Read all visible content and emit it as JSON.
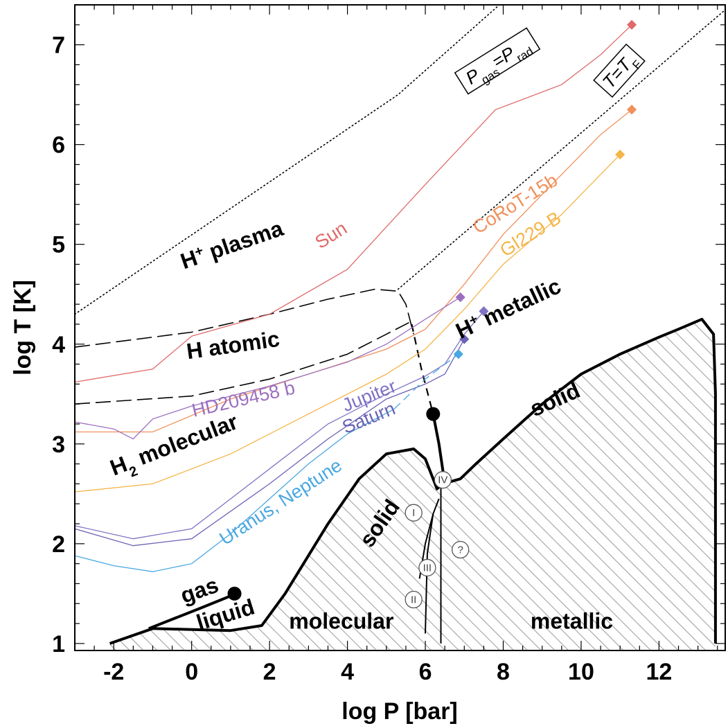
{
  "chart_data": {
    "type": "line",
    "xlabel": "log P [bar]",
    "ylabel": "log T [K]",
    "xlim": [
      -3,
      13.7
    ],
    "ylim": [
      0.93,
      7.4
    ],
    "x_ticks": [
      -2,
      0,
      2,
      4,
      6,
      8,
      10,
      12
    ],
    "y_ticks": [
      1,
      2,
      3,
      4,
      5,
      6,
      7
    ],
    "grid": false,
    "reference_lines": [
      {
        "id": "pgas-prad",
        "label": "P_gas = P_rad",
        "label_parts": {
          "main": "P",
          "sub1": "gas",
          "mid": "=P",
          "sub2": "rad"
        },
        "style": "dotted",
        "points": [
          [
            -3,
            4.3
          ],
          [
            5.3,
            6.5
          ],
          [
            7.9,
            7.4
          ]
        ]
      },
      {
        "id": "t-tf",
        "label": "T = T_F",
        "label_parts": {
          "main": "T=T",
          "sub1": "F"
        },
        "style": "dotted",
        "points": [
          [
            5.3,
            4.55
          ],
          [
            13.7,
            7.35
          ]
        ]
      }
    ],
    "boundaries": [
      {
        "id": "h-ionization",
        "style": "long-dash",
        "points": [
          [
            -3,
            3.97
          ],
          [
            0,
            4.12
          ],
          [
            2,
            4.3
          ],
          [
            3.5,
            4.45
          ],
          [
            4.7,
            4.55
          ],
          [
            5.3,
            4.53
          ],
          [
            5.5,
            4.4
          ],
          [
            5.7,
            4.1
          ]
        ]
      },
      {
        "id": "h2-dissociation",
        "style": "long-dash",
        "points": [
          [
            -3,
            3.4
          ],
          [
            0,
            3.48
          ],
          [
            2,
            3.65
          ],
          [
            4,
            3.9
          ],
          [
            5,
            4.1
          ],
          [
            5.6,
            4.22
          ]
        ]
      },
      {
        "id": "ppt-extension",
        "style": "dash",
        "points": [
          [
            5.65,
            4.2
          ],
          [
            5.9,
            3.75
          ],
          [
            6.2,
            3.3
          ]
        ]
      },
      {
        "id": "critical-line",
        "style": "solid-thick",
        "points": [
          [
            6.2,
            3.3
          ],
          [
            6.35,
            3.0
          ],
          [
            6.5,
            2.6
          ]
        ]
      },
      {
        "id": "molecular-solid",
        "style": "solid-thick",
        "points": [
          [
            -2.1,
            1.0
          ],
          [
            -1,
            1.15
          ],
          [
            1,
            1.13
          ],
          [
            1.8,
            1.18
          ],
          [
            2.4,
            1.5
          ],
          [
            3.5,
            2.2
          ],
          [
            4.3,
            2.65
          ],
          [
            5,
            2.9
          ],
          [
            5.7,
            2.95
          ],
          [
            6.0,
            2.85
          ],
          [
            6.3,
            2.55
          ],
          [
            6.45,
            2.6
          ],
          [
            6.9,
            2.65
          ],
          [
            7.3,
            2.8
          ],
          [
            8,
            3.05
          ],
          [
            9,
            3.4
          ],
          [
            10,
            3.7
          ],
          [
            11,
            3.9
          ],
          [
            12,
            4.07
          ],
          [
            12.5,
            4.15
          ],
          [
            13.1,
            4.25
          ],
          [
            13.4,
            4.1
          ],
          [
            13.45,
            3.5
          ],
          [
            13.45,
            1.0
          ]
        ]
      },
      {
        "id": "gas-liquid",
        "style": "solid-thick",
        "points": [
          [
            -1.1,
            1.15
          ],
          [
            0.2,
            1.35
          ],
          [
            1.15,
            1.5
          ]
        ]
      },
      {
        "id": "phase-i-ii",
        "style": "solid-thin",
        "points": [
          [
            5.85,
            1.65
          ],
          [
            6.0,
            2.0
          ],
          [
            6.2,
            2.3
          ],
          [
            6.35,
            2.45
          ]
        ]
      },
      {
        "id": "phase-ii-iii",
        "style": "solid-thin",
        "points": [
          [
            6.0,
            1.1
          ],
          [
            6.05,
            1.9
          ],
          [
            6.2,
            2.3
          ]
        ]
      },
      {
        "id": "phase-iv",
        "style": "solid-thin",
        "points": [
          [
            6.4,
            1.0
          ],
          [
            6.4,
            2.6
          ]
        ]
      }
    ],
    "critical_points": [
      [
        1.1,
        1.5
      ],
      [
        6.2,
        3.3
      ]
    ],
    "series": [
      {
        "name": "Sun",
        "color": "#e06a6a",
        "end_marker": [
          11.3,
          7.2
        ],
        "points": [
          [
            -3,
            3.62
          ],
          [
            -1,
            3.75
          ],
          [
            0,
            4.08
          ],
          [
            2,
            4.3
          ],
          [
            4,
            4.75
          ],
          [
            6,
            5.6
          ],
          [
            7.8,
            6.35
          ],
          [
            9.5,
            6.6
          ],
          [
            10.5,
            6.9
          ],
          [
            11.3,
            7.2
          ]
        ]
      },
      {
        "name": "CoRoT-15b",
        "color": "#f0905a",
        "end_marker": [
          11.3,
          6.35
        ],
        "points": [
          [
            -3,
            3.12
          ],
          [
            -1,
            3.12
          ],
          [
            1,
            3.45
          ],
          [
            3,
            3.7
          ],
          [
            5,
            3.95
          ],
          [
            6,
            4.15
          ],
          [
            7,
            4.6
          ],
          [
            8,
            5.1
          ],
          [
            9.5,
            5.7
          ],
          [
            10.5,
            6.1
          ],
          [
            11.3,
            6.35
          ]
        ]
      },
      {
        "name": "Gl229 B",
        "color": "#f5b548",
        "end_marker": [
          11.0,
          5.9
        ],
        "points": [
          [
            -3,
            2.52
          ],
          [
            -1,
            2.6
          ],
          [
            1,
            2.9
          ],
          [
            3,
            3.3
          ],
          [
            5,
            3.7
          ],
          [
            6,
            3.95
          ],
          [
            7,
            4.35
          ],
          [
            8,
            4.8
          ],
          [
            9.5,
            5.3
          ],
          [
            11,
            5.9
          ]
        ]
      },
      {
        "name": "HD209458 b",
        "color": "#9b6fbf",
        "end_marker": [
          6.9,
          4.47
        ],
        "points": [
          [
            -3,
            3.22
          ],
          [
            -2,
            3.15
          ],
          [
            -1.5,
            3.05
          ],
          [
            -1,
            3.25
          ],
          [
            0,
            3.38
          ],
          [
            2,
            3.58
          ],
          [
            4,
            3.82
          ],
          [
            5,
            4.0
          ],
          [
            6,
            4.25
          ],
          [
            6.9,
            4.47
          ]
        ]
      },
      {
        "name": "Jupiter",
        "color": "#7f73c4",
        "end_marker": [
          7.5,
          4.33
        ],
        "points": [
          [
            -3,
            2.18
          ],
          [
            -1.5,
            2.05
          ],
          [
            0,
            2.15
          ],
          [
            2,
            2.75
          ],
          [
            3.5,
            3.2
          ],
          [
            5,
            3.5
          ],
          [
            6,
            3.68
          ],
          [
            6.5,
            3.8
          ],
          [
            7,
            4.1
          ],
          [
            7.5,
            4.33
          ]
        ]
      },
      {
        "name": "Saturn",
        "color": "#6a63b5",
        "end_marker": [
          7.0,
          4.05
        ],
        "points": [
          [
            -3,
            2.15
          ],
          [
            -1.5,
            1.98
          ],
          [
            0,
            2.05
          ],
          [
            2,
            2.6
          ],
          [
            3.5,
            3.05
          ],
          [
            5,
            3.45
          ],
          [
            6,
            3.6
          ],
          [
            6.5,
            3.7
          ],
          [
            7,
            4.05
          ]
        ]
      },
      {
        "name": "Uranus, Neptune",
        "color": "#4aa8e0",
        "end_marker": [
          6.85,
          3.9
        ],
        "dashed_from_x": 5.2,
        "points": [
          [
            -3,
            1.88
          ],
          [
            -2,
            1.78
          ],
          [
            -1,
            1.72
          ],
          [
            0,
            1.8
          ],
          [
            1,
            2.1
          ],
          [
            2,
            2.45
          ],
          [
            3,
            2.8
          ],
          [
            4,
            3.1
          ],
          [
            5.2,
            3.35
          ],
          [
            6,
            3.65
          ],
          [
            6.85,
            3.9
          ]
        ]
      }
    ],
    "region_labels": [
      {
        "text_parts": [
          "H",
          "+",
          " plasma"
        ],
        "x": -0.2,
        "y": 4.75,
        "rotate": -19
      },
      {
        "text_parts": [
          "H atomic"
        ],
        "x": -0.1,
        "y": 3.85,
        "rotate": -8
      },
      {
        "text_parts": [
          "H",
          "2",
          " molecular"
        ],
        "x": -2.0,
        "y": 2.68,
        "rotate": -21
      },
      {
        "text_parts": [
          "H",
          "+",
          " metallic"
        ],
        "x": 6.9,
        "y": 4.05,
        "rotate": -25
      },
      {
        "text_parts": [
          "solid"
        ],
        "x": 4.6,
        "y": 1.95,
        "rotate": -55
      },
      {
        "text_parts": [
          "solid"
        ],
        "x": 8.8,
        "y": 3.27,
        "rotate": -24
      },
      {
        "text_parts": [
          "gas"
        ],
        "x": -0.2,
        "y": 1.4,
        "rotate": -19
      },
      {
        "text_parts": [
          "liquid"
        ],
        "x": 0.2,
        "y": 1.13,
        "rotate": -17
      },
      {
        "text_parts": [
          "molecular"
        ],
        "x": 2.5,
        "y": 1.15,
        "rotate": 0
      },
      {
        "text_parts": [
          "metallic"
        ],
        "x": 8.7,
        "y": 1.15,
        "rotate": 0
      }
    ],
    "object_labels": [
      {
        "text": "Sun",
        "color": "#e06a6a",
        "x": 3.3,
        "y": 4.95,
        "rotate": -32
      },
      {
        "text": "CoRoT-15b",
        "color": "#f0905a",
        "x": 7.35,
        "y": 5.1,
        "rotate": -32
      },
      {
        "text": "Gl229 B",
        "color": "#f5b548",
        "x": 8.05,
        "y": 4.87,
        "rotate": -32
      },
      {
        "text": "HD209458 b",
        "color": "#9b6fbf",
        "x": 0.05,
        "y": 3.27,
        "rotate": -13
      },
      {
        "text": "Jupiter",
        "color": "#7f73c4",
        "x": 3.95,
        "y": 3.32,
        "rotate": -22
      },
      {
        "text": "Saturn",
        "color": "#6a63b5",
        "x": 3.95,
        "y": 3.1,
        "rotate": -22
      },
      {
        "text": "Uranus, Neptune",
        "color": "#4aa8e0",
        "x": 0.85,
        "y": 1.98,
        "rotate": -33
      }
    ],
    "phase_markers": [
      {
        "text": "I",
        "x": 5.7,
        "y": 2.31
      },
      {
        "text": "II",
        "x": 5.7,
        "y": 1.44
      },
      {
        "text": "III",
        "x": 6.05,
        "y": 1.76
      },
      {
        "text": "IV",
        "x": 6.45,
        "y": 2.64
      },
      {
        "text": "?",
        "x": 6.9,
        "y": 1.94
      }
    ]
  }
}
